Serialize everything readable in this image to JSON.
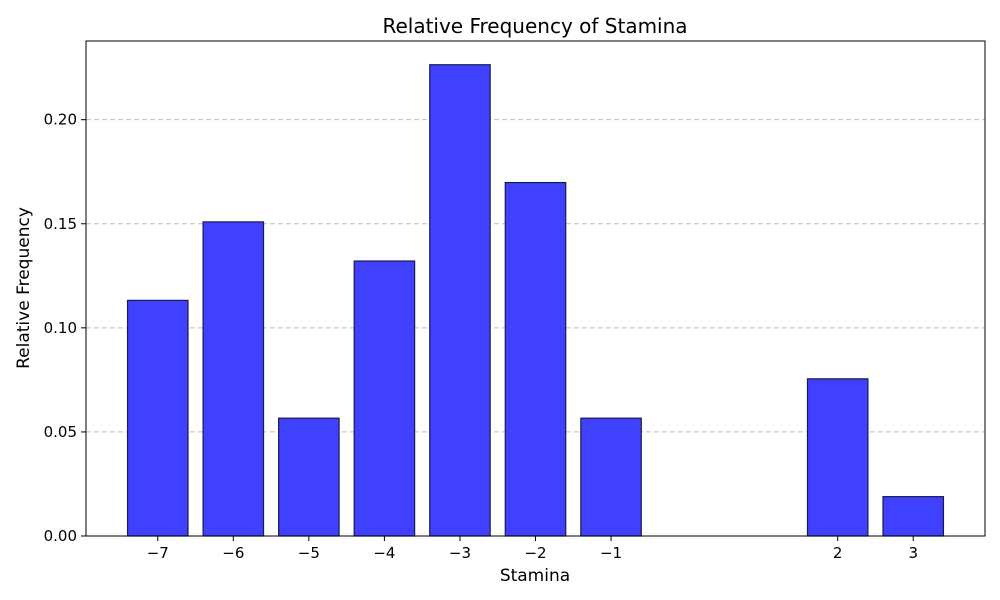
{
  "chart_data": {
    "type": "bar",
    "title": "Relative Frequency of Stamina",
    "xlabel": "Stamina",
    "ylabel": "Relative Frequency",
    "x": [
      -7,
      -6,
      -5,
      -4,
      -3,
      -2,
      -1,
      2,
      3
    ],
    "x_tick_labels": [
      "−7",
      "−6",
      "−5",
      "−4",
      "−3",
      "−2",
      "−1",
      "2",
      "3"
    ],
    "values": [
      0.1132,
      0.1509,
      0.0566,
      0.1321,
      0.2264,
      0.1698,
      0.0566,
      0.0755,
      0.0189
    ],
    "y_ticks": [
      0.0,
      0.05,
      0.1,
      0.15,
      0.2
    ],
    "y_tick_labels": [
      "0.00",
      "0.05",
      "0.10",
      "0.15",
      "0.20"
    ],
    "xlim": [
      -7.95,
      3.95
    ],
    "ylim": [
      0,
      0.2378
    ],
    "bar_width": 0.8,
    "grid": "y-dashed",
    "bar_color": "#4040ff",
    "bar_edge_color": "#1a1a4d"
  }
}
